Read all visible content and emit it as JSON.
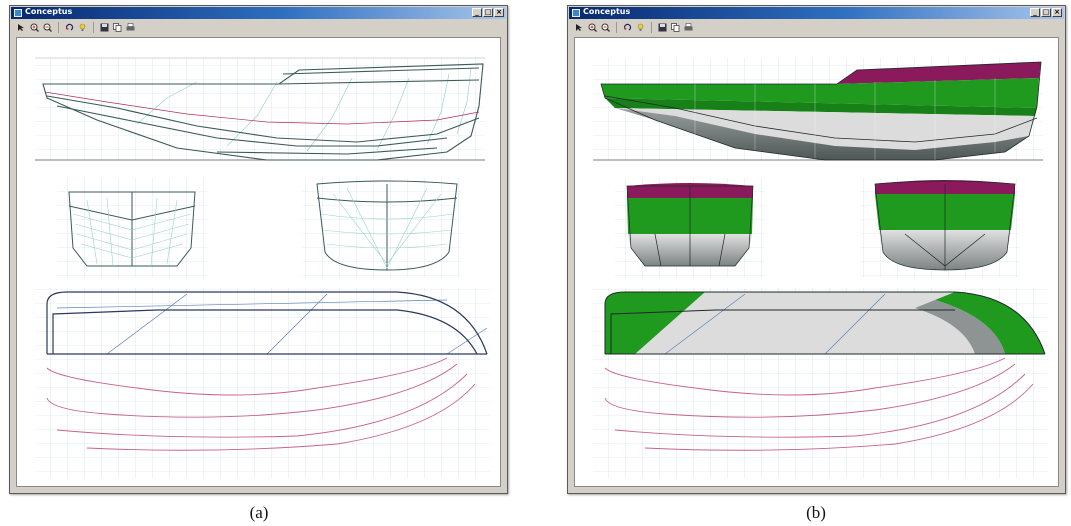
{
  "captions": {
    "a": "(a)",
    "b": "(b)"
  },
  "window": {
    "title": "Conceptus"
  },
  "controls": {
    "minimize": "_",
    "maximize": "□",
    "close": "×"
  },
  "toolbar_icons": [
    "pointer-icon",
    "zoom-in-icon",
    "zoom-out-icon",
    "rotate-icon",
    "light-icon",
    "save-icon",
    "copy-icon",
    "print-icon"
  ],
  "views": [
    "profile",
    "body-plan-aft",
    "body-plan-fwd",
    "plan-view"
  ],
  "colors": {
    "titlebar": "#0a246a",
    "deck": "#8a1a5c",
    "topside": "#1f9a1f",
    "bottom": "#6e7474",
    "bottom_light": "#dcdcdc",
    "station_lines": "#9ad3cb",
    "buttock_lines": "#c8628a",
    "waterlines": "#5a80b8",
    "grid": "#c9d8e8"
  },
  "panels": [
    {
      "id": "a",
      "mode": "wireframe"
    },
    {
      "id": "b",
      "mode": "shaded"
    }
  ]
}
